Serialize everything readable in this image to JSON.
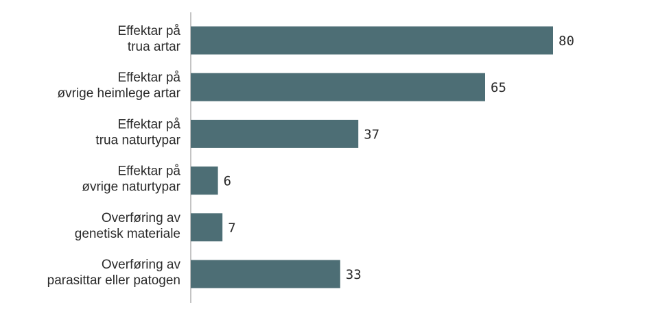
{
  "chart_data": {
    "type": "bar",
    "orientation": "horizontal",
    "categories": [
      [
        "Effektar på",
        "trua artar"
      ],
      [
        "Effektar på",
        "øvrige heimlege artar"
      ],
      [
        "Effektar på",
        "trua naturtypar"
      ],
      [
        "Effektar på",
        "øvrige naturtypar"
      ],
      [
        "Overføring av",
        "genetisk materiale"
      ],
      [
        "Overføring av",
        "parasittar eller patogen"
      ]
    ],
    "values": [
      80,
      65,
      37,
      6,
      7,
      33
    ],
    "value_labels": [
      "80",
      "65",
      "37",
      "6",
      "7",
      "33"
    ],
    "title": "",
    "xlabel": "",
    "ylabel": "",
    "xlim": [
      0,
      100
    ],
    "grid": false,
    "legend": "none",
    "bar_color": "#4d6e75",
    "axis_color": "#888888",
    "text_color": "#2b2b2b"
  }
}
